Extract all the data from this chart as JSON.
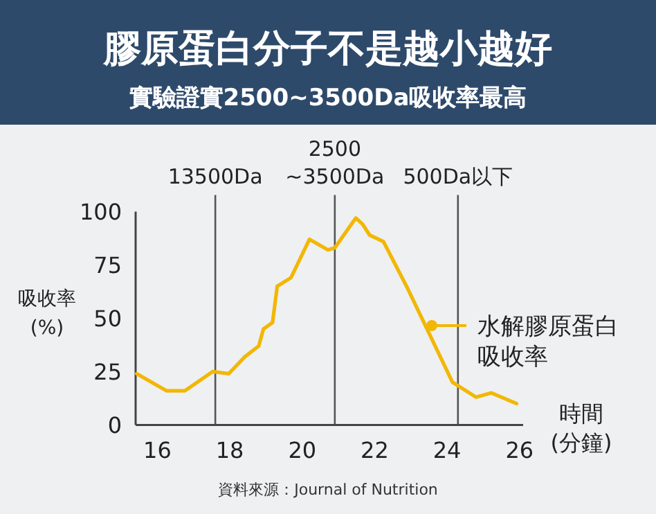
{
  "chart_data": {
    "type": "line",
    "title": "膠原蛋白分子不是越小越好",
    "subtitle": "實驗證實2500~3500Da吸收率最高",
    "xlabel": "時間 (分鐘)",
    "ylabel": "吸收率 (%)",
    "xlim": [
      15.4,
      26.1
    ],
    "xticks": [
      16,
      18,
      20,
      22,
      24,
      26
    ],
    "ylim": [
      0,
      100
    ],
    "yticks": [
      0,
      25,
      50,
      75,
      100
    ],
    "series": [
      {
        "name": "水解膠原蛋白吸收率",
        "color": "#f2b705",
        "x": [
          15.43,
          16.25,
          16.76,
          17.53,
          17.97,
          18.42,
          18.8,
          18.93,
          19.18,
          19.31,
          19.69,
          20.2,
          20.71,
          20.9,
          21.48,
          21.67,
          21.86,
          22.24,
          22.88,
          23.5,
          24.15,
          24.8,
          25.22,
          25.92
        ],
        "values": [
          24,
          16,
          16,
          25,
          24,
          32,
          37,
          45,
          48,
          65,
          69,
          87,
          82,
          83,
          97,
          94,
          89,
          86,
          65,
          43,
          20,
          13,
          15,
          10
        ]
      }
    ],
    "ref_lines": [
      {
        "axis": "x",
        "value": 17.6,
        "label": "13500Da",
        "color": "#555555"
      },
      {
        "axis": "x",
        "value": 20.9,
        "label": "2500 ~3500Da",
        "color": "#555555"
      },
      {
        "axis": "x",
        "value": 24.3,
        "label": "500Da以下",
        "color": "#555555"
      }
    ],
    "legend": "right",
    "grid": false,
    "annotations": [
      "資料來源：Journal of Nutrition"
    ]
  }
}
